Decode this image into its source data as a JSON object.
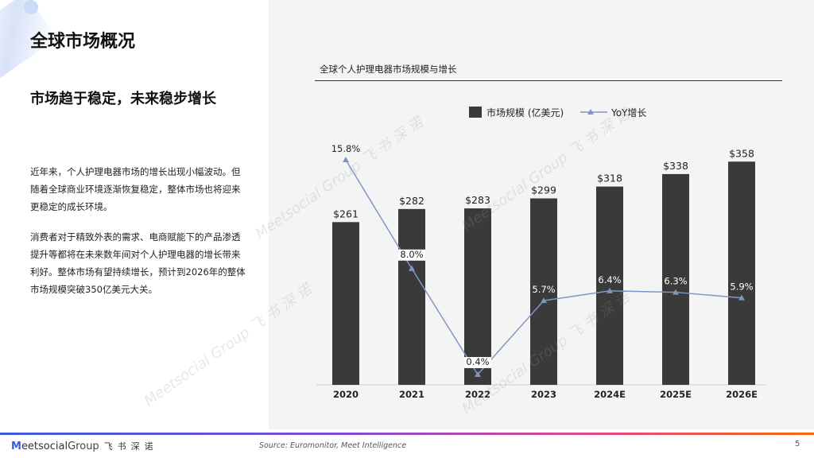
{
  "page": {
    "title": "全球市场概况",
    "subtitle": "市场趋于稳定，未来稳步增长",
    "paragraphs": [
      "近年来，个人护理电器市场的增长出现小幅波动。但随着全球商业环境逐渐恢复稳定，整体市场也将迎来更稳定的成长环境。",
      "消费者对于精致外表的需求、电商赋能下的产品渗透提升等都将在未来数年间对个人护理电器的增长带来利好。整体市场有望持续增长，预计到2026年的整体市场规模突破350亿美元大关。"
    ],
    "page_number": "5"
  },
  "footer": {
    "logo_m": "M",
    "logo_text": "eetsocial",
    "logo_group": "Group",
    "logo_cn": "飞书深诺",
    "source": "Source: Euromonitor, Meet Intelligence"
  },
  "watermark": {
    "text": "Meetsocial Group 飞 书 深 诺"
  },
  "colors": {
    "bar": "#3a3a3a",
    "line": "#8097c4",
    "marker": "#7f94c0",
    "panel": "#f4f4f4"
  },
  "chart_data": {
    "type": "bar",
    "title": "全球个人护理电器市场规模与增长",
    "categories": [
      "2020",
      "2021",
      "2022",
      "2023",
      "2024E",
      "2025E",
      "2026E"
    ],
    "series": [
      {
        "name": "市场规模 (亿美元)",
        "type": "bar",
        "values": [
          261,
          282,
          283,
          299,
          318,
          338,
          358
        ],
        "labels": [
          "$261",
          "$282",
          "$283",
          "$299",
          "$318",
          "$338",
          "$358"
        ]
      },
      {
        "name": "YoY增长",
        "type": "line",
        "values": [
          15.8,
          8.0,
          0.4,
          5.7,
          6.4,
          6.3,
          5.9
        ],
        "labels": [
          "15.8%",
          "8.0%",
          "0.4%",
          "5.7%",
          "6.4%",
          "6.3%",
          "5.9%"
        ]
      }
    ],
    "ylim_bar": [
      0,
      380
    ],
    "ylim_line": [
      0,
      17
    ],
    "legend": "top"
  }
}
